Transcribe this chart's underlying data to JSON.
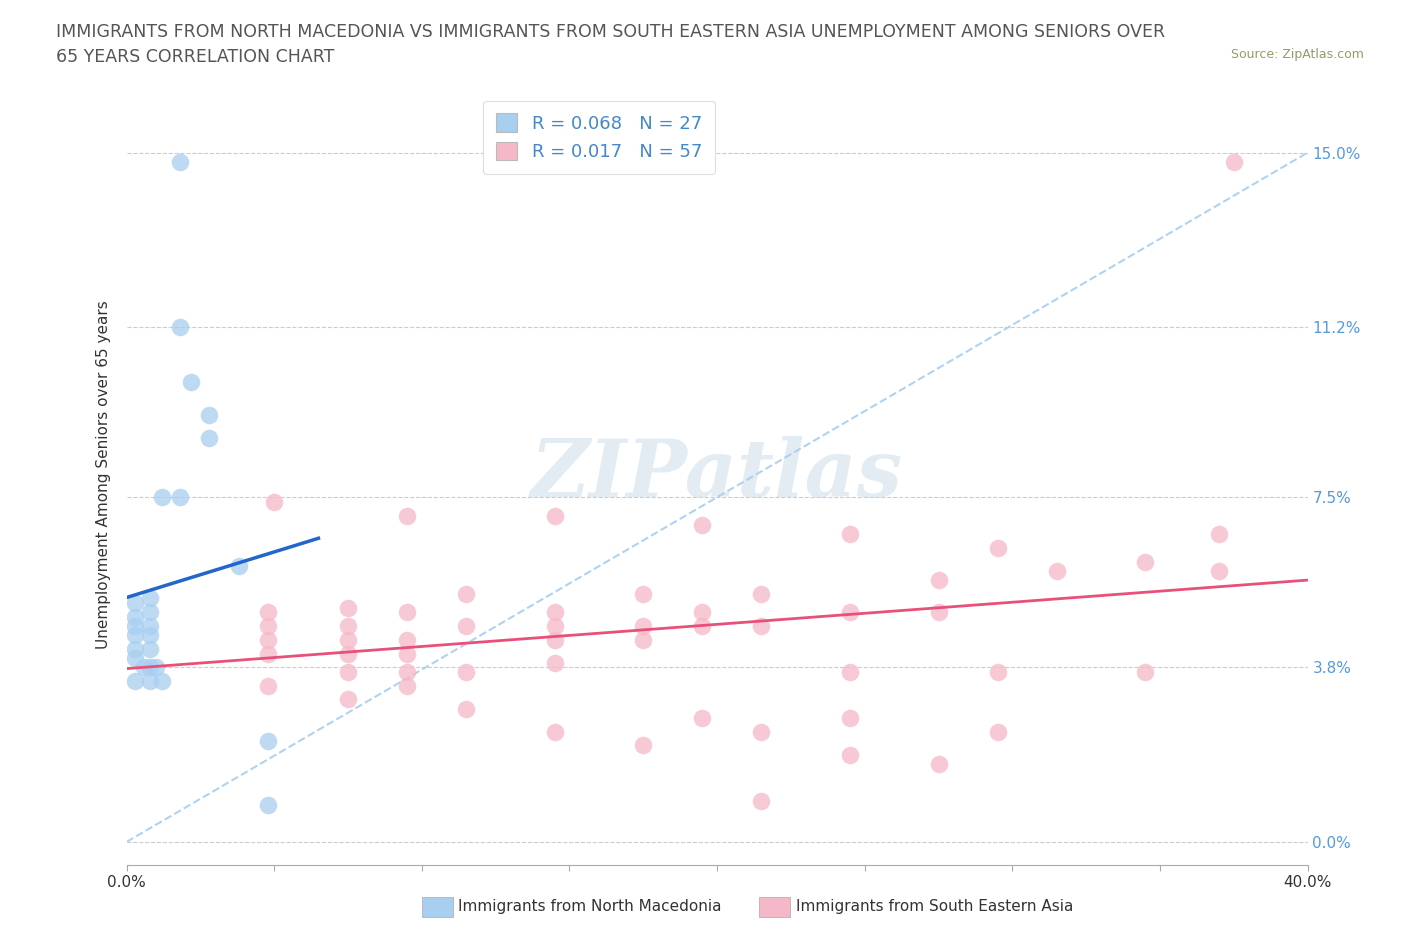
{
  "title_line1": "IMMIGRANTS FROM NORTH MACEDONIA VS IMMIGRANTS FROM SOUTH EASTERN ASIA UNEMPLOYMENT AMONG SENIORS OVER",
  "title_line2": "65 YEARS CORRELATION CHART",
  "source": "Source: ZipAtlas.com",
  "ylabel": "Unemployment Among Seniors over 65 years",
  "xlim": [
    0.0,
    0.4
  ],
  "ylim": [
    -0.005,
    0.165
  ],
  "yticks": [
    0.0,
    0.038,
    0.075,
    0.112,
    0.15
  ],
  "ytick_labels": [
    "0.0%",
    "3.8%",
    "7.5%",
    "11.2%",
    "15.0%"
  ],
  "xticks": [
    0.0,
    0.05,
    0.1,
    0.15,
    0.2,
    0.25,
    0.3,
    0.35,
    0.4
  ],
  "xtick_labels": [
    "0.0%",
    "",
    "",
    "",
    "",
    "",
    "",
    "",
    "40.0%"
  ],
  "watermark": "ZIPatlas",
  "legend_R1": "R = 0.068",
  "legend_N1": "N = 27",
  "legend_R2": "R = 0.017",
  "legend_N2": "N = 57",
  "color_blue": "#a8cef0",
  "color_pink": "#f5b8c8",
  "trendline_blue_color": "#2266cc",
  "trendline_pink_color": "#e8507a",
  "diagonal_color": "#a8cef0",
  "blue_scatter": [
    [
      0.018,
      0.148
    ],
    [
      0.018,
      0.112
    ],
    [
      0.022,
      0.1
    ],
    [
      0.028,
      0.093
    ],
    [
      0.028,
      0.088
    ],
    [
      0.012,
      0.075
    ],
    [
      0.018,
      0.075
    ],
    [
      0.038,
      0.06
    ],
    [
      0.008,
      0.053
    ],
    [
      0.003,
      0.052
    ],
    [
      0.008,
      0.05
    ],
    [
      0.003,
      0.049
    ],
    [
      0.003,
      0.047
    ],
    [
      0.008,
      0.047
    ],
    [
      0.003,
      0.045
    ],
    [
      0.008,
      0.045
    ],
    [
      0.003,
      0.042
    ],
    [
      0.008,
      0.042
    ],
    [
      0.003,
      0.04
    ],
    [
      0.006,
      0.038
    ],
    [
      0.008,
      0.038
    ],
    [
      0.01,
      0.038
    ],
    [
      0.003,
      0.035
    ],
    [
      0.008,
      0.035
    ],
    [
      0.012,
      0.035
    ],
    [
      0.048,
      0.022
    ],
    [
      0.048,
      0.008
    ]
  ],
  "pink_scatter": [
    [
      0.375,
      0.148
    ],
    [
      0.05,
      0.074
    ],
    [
      0.095,
      0.071
    ],
    [
      0.145,
      0.071
    ],
    [
      0.195,
      0.069
    ],
    [
      0.245,
      0.067
    ],
    [
      0.295,
      0.064
    ],
    [
      0.345,
      0.061
    ],
    [
      0.315,
      0.059
    ],
    [
      0.275,
      0.057
    ],
    [
      0.215,
      0.054
    ],
    [
      0.175,
      0.054
    ],
    [
      0.115,
      0.054
    ],
    [
      0.075,
      0.051
    ],
    [
      0.048,
      0.05
    ],
    [
      0.095,
      0.05
    ],
    [
      0.145,
      0.05
    ],
    [
      0.195,
      0.05
    ],
    [
      0.245,
      0.05
    ],
    [
      0.275,
      0.05
    ],
    [
      0.048,
      0.047
    ],
    [
      0.075,
      0.047
    ],
    [
      0.115,
      0.047
    ],
    [
      0.145,
      0.047
    ],
    [
      0.175,
      0.047
    ],
    [
      0.195,
      0.047
    ],
    [
      0.215,
      0.047
    ],
    [
      0.048,
      0.044
    ],
    [
      0.075,
      0.044
    ],
    [
      0.095,
      0.044
    ],
    [
      0.145,
      0.044
    ],
    [
      0.175,
      0.044
    ],
    [
      0.048,
      0.041
    ],
    [
      0.075,
      0.041
    ],
    [
      0.095,
      0.041
    ],
    [
      0.145,
      0.039
    ],
    [
      0.075,
      0.037
    ],
    [
      0.095,
      0.037
    ],
    [
      0.115,
      0.037
    ],
    [
      0.245,
      0.037
    ],
    [
      0.295,
      0.037
    ],
    [
      0.345,
      0.037
    ],
    [
      0.048,
      0.034
    ],
    [
      0.095,
      0.034
    ],
    [
      0.075,
      0.031
    ],
    [
      0.115,
      0.029
    ],
    [
      0.195,
      0.027
    ],
    [
      0.245,
      0.027
    ],
    [
      0.145,
      0.024
    ],
    [
      0.215,
      0.024
    ],
    [
      0.295,
      0.024
    ],
    [
      0.175,
      0.021
    ],
    [
      0.245,
      0.019
    ],
    [
      0.275,
      0.017
    ],
    [
      0.37,
      0.059
    ],
    [
      0.37,
      0.067
    ],
    [
      0.215,
      0.009
    ]
  ],
  "background_color": "#ffffff",
  "grid_color": "#cccccc",
  "title_fontsize": 12.5,
  "axis_label_fontsize": 11,
  "tick_fontsize": 11,
  "legend_label1": "Immigrants from North Macedonia",
  "legend_label2": "Immigrants from South Eastern Asia"
}
